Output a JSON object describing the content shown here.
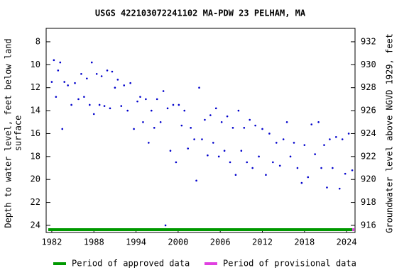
{
  "chart_data": {
    "type": "scatter",
    "title": "USGS 422103072241102 MA-PDW   23 PELHAM, MA",
    "ylabel": [
      "Depth to water level, feet below land",
      "surface"
    ],
    "y2label": "Groundwater level above NGVD 1929, feet",
    "xlim": [
      1981.2,
      2025.2
    ],
    "xticks": [
      1982,
      1988,
      1994,
      2000,
      2006,
      2012,
      2018,
      2024
    ],
    "ylim": [
      24.62,
      6.83
    ],
    "yticks": [
      8,
      10,
      12,
      14,
      16,
      18,
      20,
      22,
      24
    ],
    "y2lim": [
      915.38,
      933.17
    ],
    "y2ticks": [
      916,
      918,
      920,
      922,
      924,
      926,
      928,
      930,
      932
    ],
    "series": [
      {
        "name": "Depth to water level",
        "color": "#0000cc",
        "x": [
          1982.0,
          1982.3,
          1982.6,
          1982.9,
          1983.2,
          1983.5,
          1983.8,
          1984.3,
          1984.8,
          1985.3,
          1985.8,
          1986.2,
          1986.6,
          1987.0,
          1987.4,
          1987.7,
          1988.0,
          1988.4,
          1988.8,
          1989.1,
          1989.5,
          1989.9,
          1990.3,
          1990.6,
          1991.0,
          1991.4,
          1991.9,
          1992.3,
          1992.8,
          1993.2,
          1993.7,
          1994.2,
          1994.6,
          1995.0,
          1995.4,
          1995.8,
          1996.2,
          1996.6,
          1997.0,
          1997.5,
          1997.9,
          1998.2,
          1998.5,
          1998.9,
          1999.3,
          1999.7,
          2000.1,
          2000.5,
          2000.9,
          2001.4,
          2001.8,
          2002.3,
          2002.6,
          2003.0,
          2003.4,
          2003.8,
          2004.2,
          2004.6,
          2005.0,
          2005.4,
          2005.8,
          2006.2,
          2006.6,
          2007.0,
          2007.4,
          2007.8,
          2008.2,
          2008.6,
          2009.0,
          2009.4,
          2009.8,
          2010.2,
          2010.6,
          2011.0,
          2011.5,
          2012.0,
          2012.5,
          2013.0,
          2013.5,
          2014.0,
          2014.5,
          2015.0,
          2015.5,
          2016.0,
          2016.5,
          2017.0,
          2017.6,
          2018.0,
          2018.5,
          2019.0,
          2019.5,
          2020.0,
          2020.4,
          2020.8,
          2021.2,
          2021.6,
          2022.0,
          2022.5,
          2023.0,
          2023.4,
          2023.8,
          2024.3,
          2024.8
        ],
        "values": [
          11.5,
          9.6,
          12.8,
          10.5,
          9.8,
          15.6,
          11.5,
          11.8,
          13.5,
          11.6,
          13.0,
          10.8,
          12.8,
          11.2,
          13.5,
          9.8,
          14.3,
          10.8,
          13.5,
          11.0,
          13.6,
          10.5,
          13.8,
          10.6,
          12.0,
          11.3,
          13.6,
          11.8,
          14.0,
          11.6,
          15.6,
          13.2,
          12.8,
          15.0,
          13.0,
          16.8,
          14.0,
          15.5,
          13.0,
          15.0,
          12.3,
          24.0,
          13.8,
          17.5,
          13.5,
          18.5,
          13.5,
          15.3,
          14.0,
          17.3,
          15.5,
          16.5,
          20.1,
          12.0,
          16.5,
          14.8,
          17.9,
          14.4,
          16.8,
          13.8,
          18.0,
          15.0,
          17.5,
          14.5,
          18.5,
          15.5,
          19.6,
          14.0,
          17.5,
          15.5,
          18.5,
          14.8,
          19.0,
          15.3,
          18.0,
          15.6,
          19.6,
          16.0,
          18.5,
          16.8,
          18.8,
          16.5,
          15.0,
          18.0,
          16.8,
          19.0,
          20.3,
          17.0,
          19.8,
          15.2,
          17.8,
          15.0,
          19.0,
          17.0,
          20.7,
          16.5,
          19.0,
          16.3,
          20.8,
          16.5,
          19.5,
          16.0,
          19.2
        ]
      }
    ],
    "periods": [
      {
        "name": "Period of approved data",
        "color": "#009900",
        "start": 1981.5,
        "end": 2024.8
      },
      {
        "name": "Period of provisional data",
        "color": "#e040e0",
        "start": 2024.8,
        "end": 2025.1
      }
    ]
  }
}
